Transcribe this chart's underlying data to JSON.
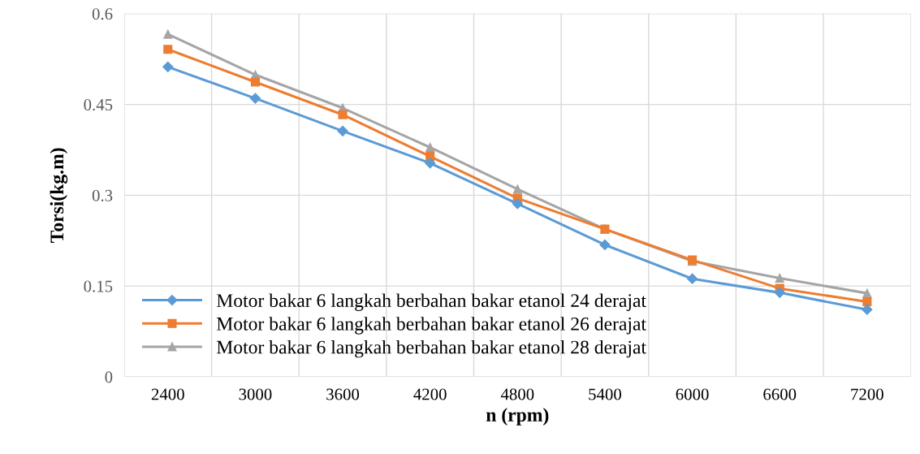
{
  "chart_data": {
    "type": "line",
    "xlabel": "n (rpm)",
    "ylabel": "Torsi(kg.m)",
    "categories": [
      "2400",
      "3000",
      "3600",
      "4200",
      "4800",
      "5400",
      "6000",
      "6600",
      "7200"
    ],
    "series": [
      {
        "name": "Motor bakar 6 langkah berbahan bakar etanol 24 derajat",
        "color": "#5b9bd5",
        "marker": "diamond",
        "values": [
          0.512,
          0.46,
          0.406,
          0.353,
          0.286,
          0.218,
          0.162,
          0.139,
          0.111
        ]
      },
      {
        "name": "Motor bakar 6 langkah berbahan bakar etanol 26 derajat",
        "color": "#ed7d31",
        "marker": "square",
        "values": [
          0.541,
          0.487,
          0.433,
          0.364,
          0.295,
          0.244,
          0.193,
          0.146,
          0.124
        ]
      },
      {
        "name": "Motor bakar 6 langkah berbahan bakar etanol 28 derajat",
        "color": "#a5a5a5",
        "marker": "triangle",
        "values": [
          0.566,
          0.499,
          0.444,
          0.379,
          0.31,
          0.244,
          0.191,
          0.163,
          0.138
        ]
      }
    ],
    "ylim": [
      0,
      0.6
    ],
    "yticks": [
      0,
      0.15,
      0.3,
      0.45,
      0.6
    ],
    "grid": true,
    "legend": "bottom left",
    "line_style": "solid"
  }
}
